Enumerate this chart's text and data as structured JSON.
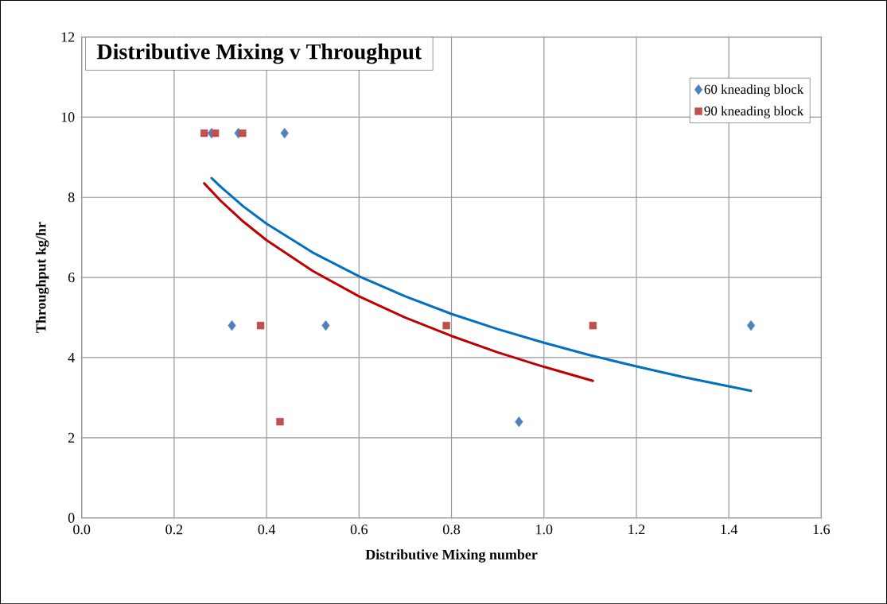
{
  "chart_data": {
    "type": "scatter",
    "title": "Distributive Mixing v Throughput",
    "xlabel": "Distributive Mixing number",
    "ylabel": "Throughput kg/hr",
    "xlim": [
      0,
      1.6
    ],
    "ylim": [
      0,
      12
    ],
    "xticks": [
      {
        "value": 0,
        "label": "0.0"
      },
      0.2,
      0.4,
      0.6,
      0.8,
      {
        "value": 1,
        "label": "1.0"
      },
      1.2,
      1.4,
      1.6
    ],
    "yticks": [
      0,
      2,
      4,
      6,
      8,
      10,
      12
    ],
    "grid": true,
    "legend": "top right",
    "series": [
      {
        "name": "60 kneading block",
        "color": "#4f81bd",
        "marker": "diamond",
        "x": [
          0.281,
          0.339,
          0.439,
          0.325,
          0.528,
          1.448,
          0.946
        ],
        "values": [
          9.6,
          9.6,
          9.6,
          4.8,
          4.8,
          4.8,
          2.4
        ]
      },
      {
        "name": "90 kneading block",
        "color": "#c0504d",
        "marker": "square",
        "x": [
          0.265,
          0.289,
          0.348,
          0.387,
          0.789,
          1.106,
          0.429
        ],
        "values": [
          9.6,
          9.6,
          9.6,
          4.8,
          4.8,
          4.8,
          2.4
        ]
      },
      {
        "type": "line",
        "color": "#0070c0",
        "marker": "none",
        "line_style": "solid",
        "x": [
          0.281,
          0.3,
          0.35,
          0.4,
          0.5,
          0.6,
          0.7,
          0.8,
          0.9,
          1.0,
          1.1,
          1.2,
          1.3,
          1.448
        ],
        "values": [
          8.48,
          8.27,
          7.77,
          7.34,
          6.62,
          6.03,
          5.53,
          5.09,
          4.71,
          4.37,
          4.06,
          3.78,
          3.52,
          3.17
        ]
      },
      {
        "type": "line",
        "color": "#c00000",
        "marker": "none",
        "line_style": "solid",
        "x": [
          0.265,
          0.3,
          0.35,
          0.4,
          0.5,
          0.6,
          0.7,
          0.8,
          0.9,
          1.0,
          1.106
        ],
        "values": [
          8.35,
          7.92,
          7.39,
          6.93,
          6.16,
          5.53,
          5.0,
          4.54,
          4.13,
          3.77,
          3.42
        ]
      }
    ]
  }
}
